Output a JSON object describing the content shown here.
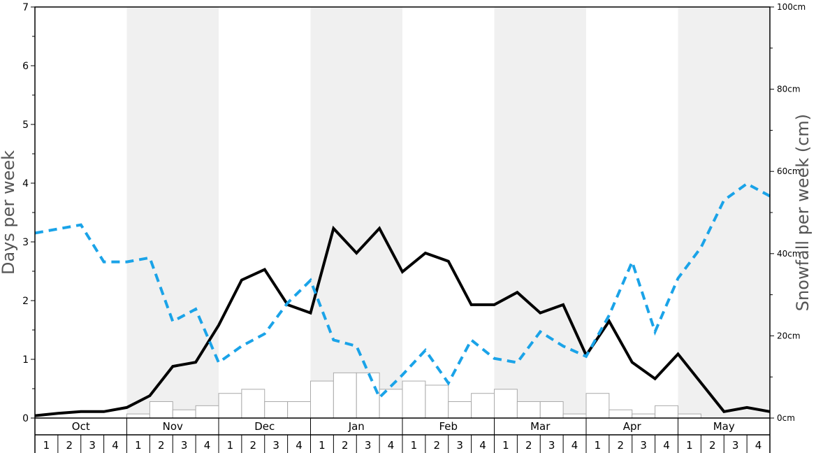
{
  "chart_data": {
    "type": "bar",
    "ylabel": "Days per week",
    "y2label": "Snowfall per week (cm)",
    "ylim": [
      0,
      7
    ],
    "y_ticks": [
      "0",
      "1",
      "2",
      "3",
      "4",
      "5",
      "6",
      "7"
    ],
    "y2lim": [
      0,
      100
    ],
    "y2_ticks": [
      "0cm",
      "20cm",
      "40cm",
      "60cm",
      "80cm",
      "100cm"
    ],
    "months": [
      "Oct",
      "Nov",
      "Dec",
      "Jan",
      "Feb",
      "Mar",
      "Apr",
      "May"
    ],
    "week_labels": [
      "1",
      "2",
      "3",
      "4"
    ],
    "alternating_month_shading": true,
    "colors": {
      "bar_fill": "#ffffff",
      "bar_stroke": "#aaaaaa",
      "shade": "#f0f0f0",
      "solid_line": "#000000",
      "dashed_line": "#1aa3e8",
      "axis": "#000000"
    },
    "series": [
      {
        "type": "bar",
        "axis": "left",
        "values": [
          0,
          0,
          0,
          0,
          0.07,
          0.28,
          0.14,
          0.21,
          0.42,
          0.49,
          0.28,
          0.28,
          0.63,
          0.77,
          0.77,
          0.49,
          0.63,
          0.56,
          0.28,
          0.42,
          0.49,
          0.28,
          0.28,
          0.07,
          0.42,
          0.14,
          0.07,
          0.21,
          0.07,
          0,
          0,
          0
        ]
      },
      {
        "type": "line",
        "style": "solid",
        "axis": "left",
        "values": [
          0.04,
          0.08,
          0.11,
          0.11,
          0.18,
          0.38,
          0.88,
          0.95,
          1.58,
          2.35,
          2.53,
          1.93,
          1.79,
          3.23,
          2.81,
          3.23,
          2.49,
          2.81,
          2.67,
          1.93,
          1.93,
          2.14,
          1.79,
          1.93,
          1.07,
          1.65,
          0.95,
          0.67,
          1.09,
          0.6,
          0.11,
          0.18,
          0.11
        ]
      },
      {
        "type": "line",
        "style": "dashed",
        "axis": "right",
        "values": [
          45,
          46,
          47,
          38,
          38,
          39,
          23.5,
          26.5,
          13.5,
          17.5,
          20.5,
          28,
          33.5,
          19,
          17.5,
          5,
          10.5,
          16.5,
          8.5,
          19,
          14.5,
          13.5,
          21,
          17.5,
          15,
          25,
          38,
          21,
          34,
          41.5,
          53,
          57,
          54
        ]
      }
    ]
  }
}
